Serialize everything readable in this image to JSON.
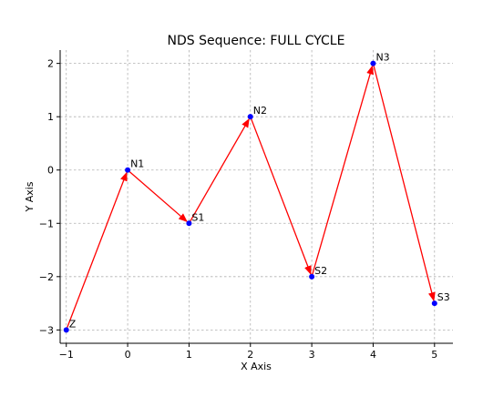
{
  "chart_data": {
    "type": "line",
    "title": "NDS Sequence: FULL CYCLE",
    "xlabel": "X Axis",
    "ylabel": "Y Axis",
    "xlim": [
      -1.1,
      5.3
    ],
    "ylim": [
      -3.25,
      2.25
    ],
    "xticks": [
      -1,
      0,
      1,
      2,
      3,
      4,
      5
    ],
    "yticks": [
      -3,
      -2,
      -1,
      0,
      1,
      2
    ],
    "xtick_labels": [
      "−1",
      "0",
      "1",
      "2",
      "3",
      "4",
      "5"
    ],
    "ytick_labels": [
      "−3",
      "−2",
      "−1",
      "0",
      "1",
      "2"
    ],
    "grid": true,
    "point_color": "#0000ff",
    "arrow_color": "#ff0000",
    "points": [
      {
        "label": "Z",
        "x": -1,
        "y": -3
      },
      {
        "label": "N1",
        "x": 0,
        "y": 0
      },
      {
        "label": "S1",
        "x": 1,
        "y": -1
      },
      {
        "label": "N2",
        "x": 2,
        "y": 1
      },
      {
        "label": "S2",
        "x": 3,
        "y": -2
      },
      {
        "label": "N3",
        "x": 4,
        "y": 2
      },
      {
        "label": "S3",
        "x": 5,
        "y": -2.5
      }
    ]
  }
}
